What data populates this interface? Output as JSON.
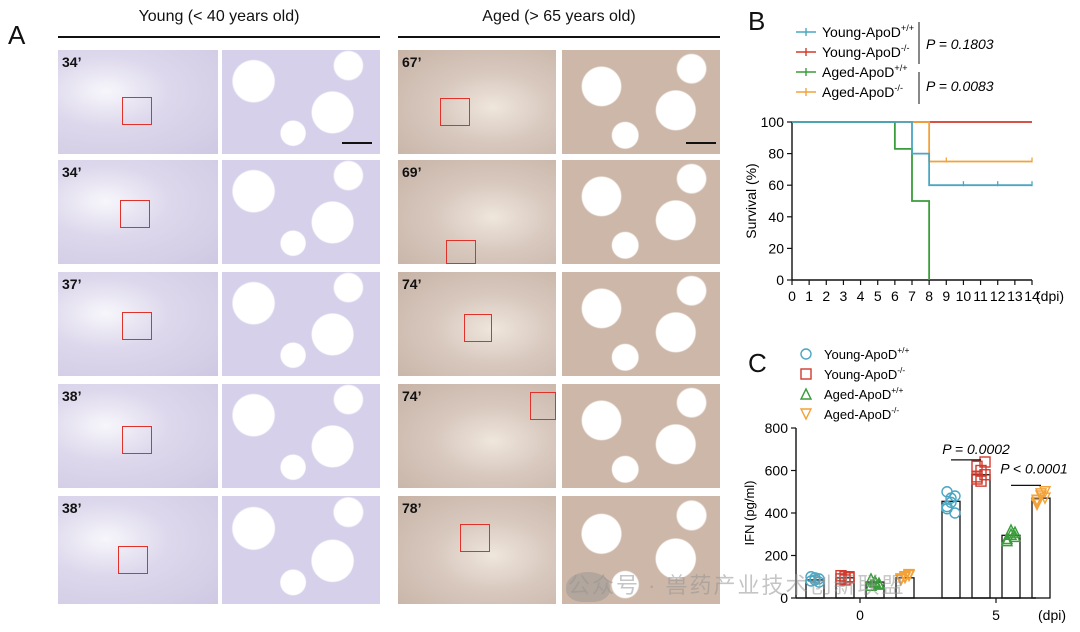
{
  "panel_labels": {
    "a": "A",
    "b": "B",
    "c": "C"
  },
  "panel_a": {
    "young_header": "Young (< 40 years old)",
    "aged_header": "Aged (> 65 years old)",
    "young_ages": [
      "34’",
      "34’",
      "37’",
      "38’",
      "38’"
    ],
    "aged_ages": [
      "67’",
      "69’",
      "74’",
      "74’",
      "78’"
    ]
  },
  "chart_data": [
    {
      "type": "line",
      "subtype": "kaplan-meier",
      "ylabel": "Survival (%)",
      "xunit": "(dpi)",
      "xlim": [
        0,
        14
      ],
      "ylim": [
        0,
        100
      ],
      "xticks": [
        "0",
        "1",
        "2",
        "3",
        "4",
        "5",
        "6",
        "7",
        "8",
        "9",
        "10",
        "11",
        "12",
        "13",
        "14"
      ],
      "yticks": [
        "0",
        "20",
        "40",
        "60",
        "80",
        "100"
      ],
      "series": [
        {
          "name": "Young-ApoD",
          "sup": "+/+",
          "color": "#4aa6c2",
          "x": [
            0,
            7,
            7,
            7.5,
            7.5,
            8,
            8,
            14
          ],
          "y": [
            100,
            100,
            80,
            80,
            80,
            80,
            60,
            60
          ]
        },
        {
          "name": "Young-ApoD",
          "sup": "-/-",
          "color": "#d13a2d",
          "x": [
            0,
            14
          ],
          "y": [
            100,
            100
          ]
        },
        {
          "name": "Aged-ApoD",
          "sup": "+/+",
          "color": "#3a9c3a",
          "x": [
            0,
            6,
            6,
            7,
            7,
            8,
            8
          ],
          "y": [
            100,
            100,
            83,
            83,
            50,
            50,
            0
          ]
        },
        {
          "name": "Aged-ApoD",
          "sup": "-/-",
          "color": "#f3a23a",
          "x": [
            0,
            8,
            8,
            14
          ],
          "y": [
            100,
            100,
            75,
            75
          ]
        }
      ],
      "p_values": [
        "P = 0.1803",
        "P = 0.0083"
      ]
    },
    {
      "type": "bar",
      "subtype": "bar-with-points",
      "ylabel": "IFN (pg/ml)",
      "xunit": "(dpi)",
      "categories": [
        "0",
        "5"
      ],
      "ylim": [
        0,
        800
      ],
      "yticks": [
        "0",
        "200",
        "400",
        "600",
        "800"
      ],
      "series": [
        {
          "name": "Young-ApoD",
          "sup": "+/+",
          "marker": "circle",
          "color": "#4aa6c2",
          "values": [
            85,
            455
          ],
          "points": [
            [
              80,
              95,
              75,
              100,
              85,
              90
            ],
            [
              430,
              470,
              400,
              500,
              450,
              480,
              420
            ]
          ]
        },
        {
          "name": "Young-ApoD",
          "sup": "-/-",
          "marker": "square",
          "color": "#d13a2d",
          "values": [
            95,
            580
          ],
          "points": [
            [
              90,
              100,
              95,
              105,
              85,
              100
            ],
            [
              560,
              600,
              580,
              620,
              550,
              640,
              570
            ]
          ]
        },
        {
          "name": "Aged-ApoD",
          "sup": "+/+",
          "marker": "triangle",
          "color": "#3a9c3a",
          "values": [
            75,
            295
          ],
          "points": [
            [
              60,
              80,
              70,
              90,
              75,
              65
            ],
            [
              280,
              300,
              310,
              270,
              320,
              290
            ]
          ]
        },
        {
          "name": "Aged-ApoD",
          "sup": "-/-",
          "marker": "triangle-down",
          "color": "#f3a23a",
          "values": [
            95,
            470
          ],
          "points": [
            [
              85,
              100,
              110,
              90,
              95,
              105
            ],
            [
              450,
              480,
              500,
              460,
              490,
              470,
              440
            ]
          ]
        }
      ],
      "p_values": [
        "P = 0.0002",
        "P < 0.0001"
      ]
    }
  ],
  "watermark": "公众号 · 兽药产业技术创新联盟"
}
